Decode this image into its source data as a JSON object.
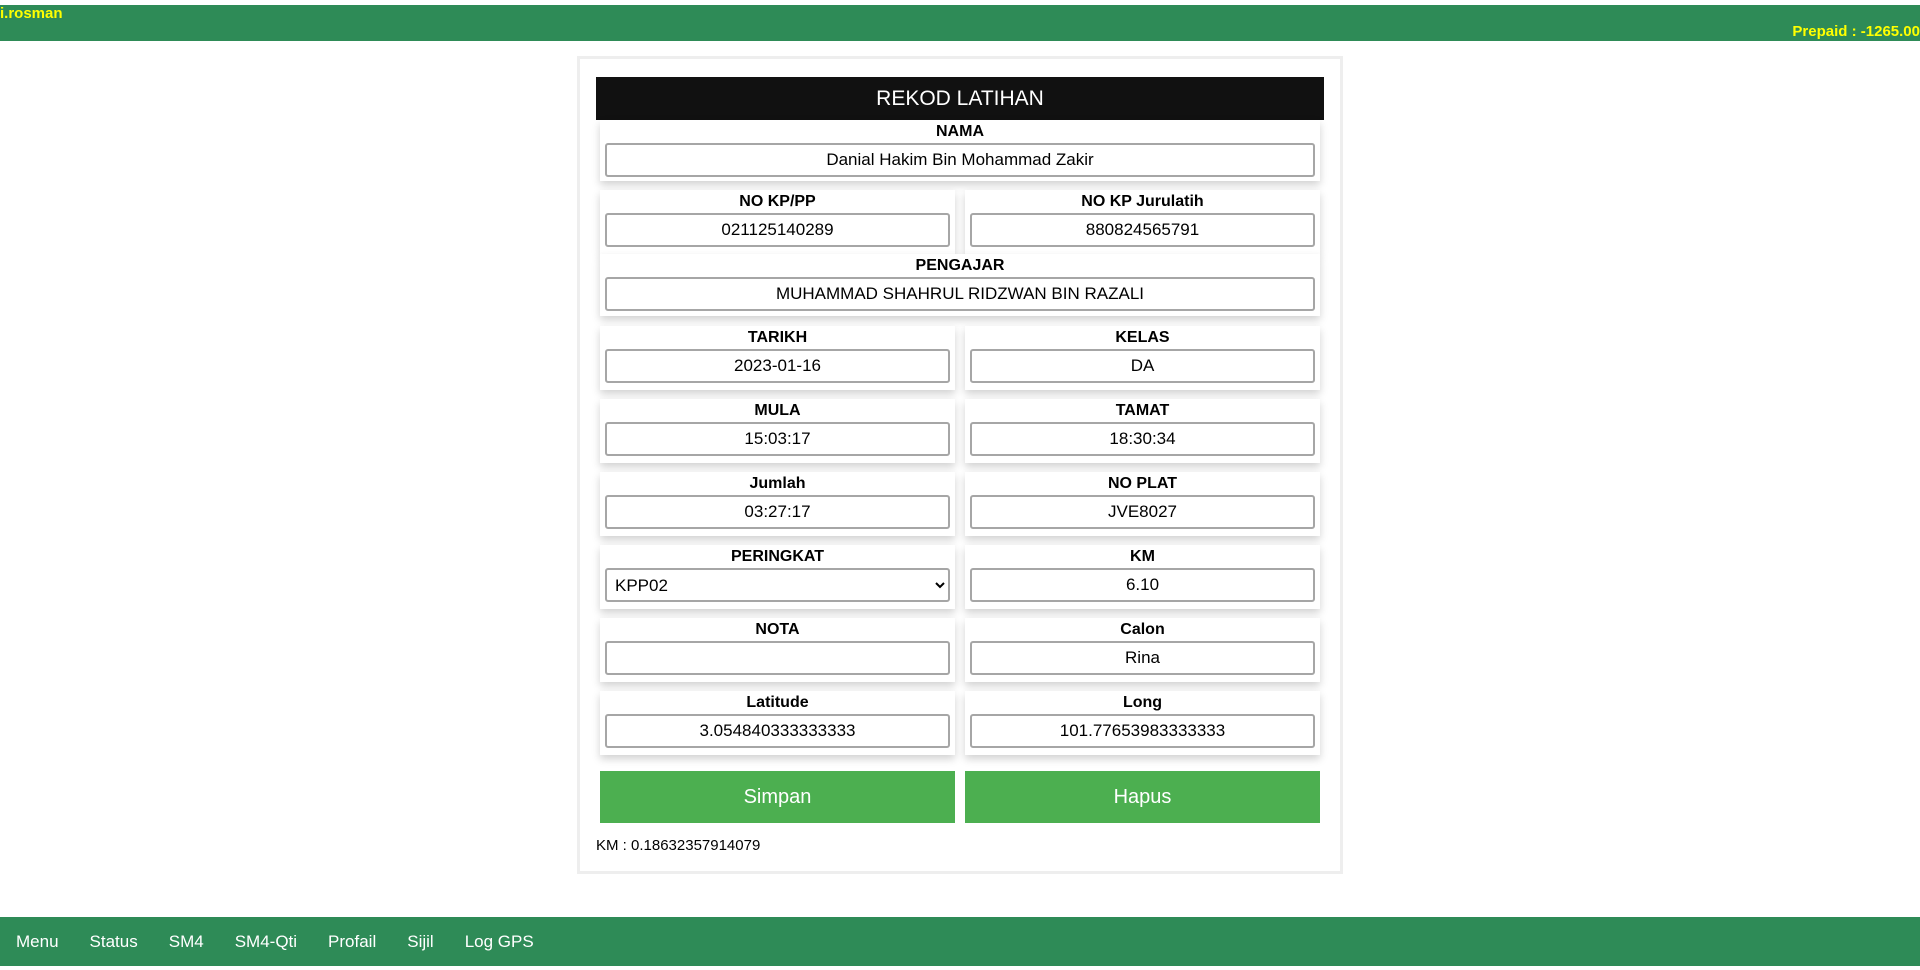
{
  "header": {
    "user": "i.rosman",
    "prepaid": "Prepaid : -1265.00"
  },
  "form": {
    "title": "REKOD LATIHAN",
    "nama": {
      "label": "NAMA",
      "value": "Danial Hakim Bin Mohammad Zakir"
    },
    "no_kp": {
      "label": "NO KP/PP",
      "value": "021125140289"
    },
    "no_kp_jurulatih": {
      "label": "NO KP Jurulatih",
      "value": "880824565791"
    },
    "pengajar": {
      "label": "PENGAJAR",
      "value": "MUHAMMAD SHAHRUL RIDZWAN BIN RAZALI"
    },
    "tarikh": {
      "label": "TARIKH",
      "value": "2023-01-16"
    },
    "kelas": {
      "label": "KELAS",
      "value": "DA"
    },
    "mula": {
      "label": "MULA",
      "value": "15:03:17"
    },
    "tamat": {
      "label": "TAMAT",
      "value": "18:30:34"
    },
    "jumlah": {
      "label": "Jumlah",
      "value": "03:27:17"
    },
    "no_plat": {
      "label": "NO PLAT",
      "value": "JVE8027"
    },
    "peringkat": {
      "label": "PERINGKAT",
      "value": "KPP02"
    },
    "km": {
      "label": "KM",
      "value": "6.10"
    },
    "nota": {
      "label": "NOTA",
      "value": ""
    },
    "calon": {
      "label": "Calon",
      "value": "Rina"
    },
    "latitude": {
      "label": "Latitude",
      "value": "3.054840333333333"
    },
    "long": {
      "label": "Long",
      "value": "101.77653983333333"
    },
    "save_label": "Simpan",
    "delete_label": "Hapus",
    "km_readout": "KM : 0.18632357914079"
  },
  "footer": {
    "items": [
      "Menu",
      "Status",
      "SM4",
      "SM4-Qti",
      "Profail",
      "Sijil",
      "Log GPS"
    ]
  },
  "colors": {
    "bar": "#2e8b57",
    "button": "#4caf50",
    "highlight": "#ffff00"
  }
}
